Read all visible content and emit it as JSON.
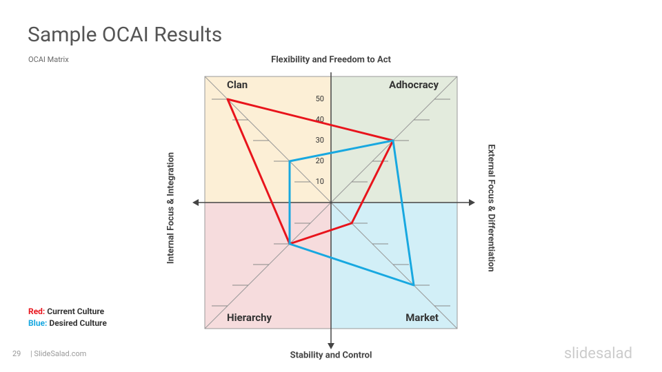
{
  "slide": {
    "title": "Sample OCAI Results",
    "subtitle": "OCAI Matrix"
  },
  "footer": {
    "page": "29",
    "site": "| SlideSalad.com",
    "logo": "slidesalad"
  },
  "chart_data": {
    "type": "ocai",
    "axis_labels": {
      "top": "Flexibility and Freedom to Act",
      "bottom": "Stability and Control",
      "left": "Internal Focus & Integration",
      "right": "External Focus & Differentiation"
    },
    "categories": [
      "Clan",
      "Adhocracy",
      "Market",
      "Hierarchy"
    ],
    "series": [
      {
        "name": "Current Culture",
        "key": "Red:",
        "color": "#e8141c",
        "values": [
          50,
          30,
          10,
          20
        ]
      },
      {
        "name": "Desired Culture",
        "key": "Blue:",
        "color": "#18a8e0",
        "values": [
          20,
          30,
          40,
          20
        ]
      }
    ],
    "rlim": [
      0,
      61
    ],
    "rticks": [
      10,
      20,
      30,
      40,
      50
    ]
  }
}
